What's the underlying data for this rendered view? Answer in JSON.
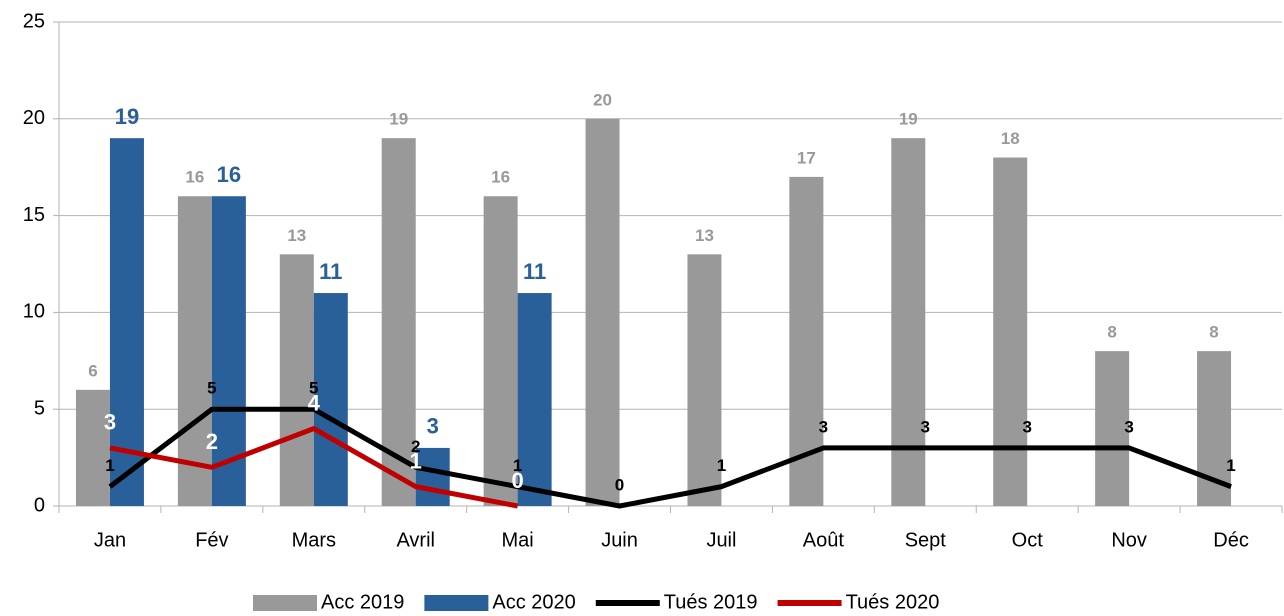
{
  "chart_data": {
    "type": "bar",
    "categories": [
      "Jan",
      "Fév",
      "Mars",
      "Avril",
      "Mai",
      "Juin",
      "Juil",
      "Août",
      "Sept",
      "Oct",
      "Nov",
      "Déc"
    ],
    "series": [
      {
        "name": "Acc 2019",
        "type": "bar",
        "color": "#999999",
        "values": [
          6,
          16,
          13,
          19,
          16,
          20,
          13,
          17,
          19,
          18,
          8,
          8
        ]
      },
      {
        "name": "Acc 2020",
        "type": "bar",
        "color": "#2a6099",
        "values": [
          19,
          16,
          11,
          3,
          11,
          null,
          null,
          null,
          null,
          null,
          null,
          null
        ]
      },
      {
        "name": "Tués 2019",
        "type": "line",
        "color": "#000000",
        "values": [
          1,
          5,
          5,
          2,
          1,
          0,
          1,
          3,
          3,
          3,
          3,
          1
        ]
      },
      {
        "name": "Tués 2020",
        "type": "line",
        "color": "#c00000",
        "values": [
          3,
          2,
          4,
          1,
          0,
          null,
          null,
          null,
          null,
          null,
          null,
          null
        ]
      }
    ],
    "ylim": [
      0,
      25
    ],
    "yticks": [
      0,
      5,
      10,
      15,
      20,
      25
    ],
    "grid": true,
    "legend": "bottom"
  }
}
